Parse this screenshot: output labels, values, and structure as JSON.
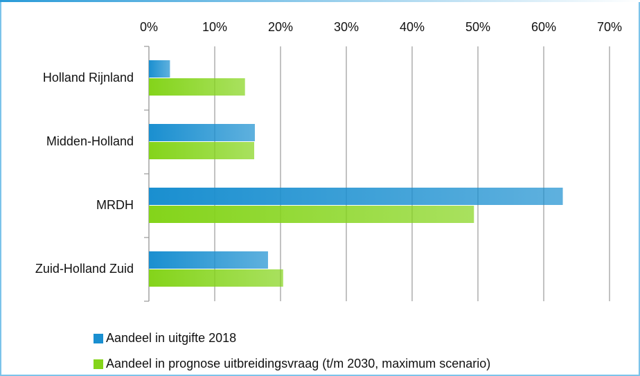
{
  "chart_data": {
    "type": "hbar",
    "categories": [
      "Holland Rijnland",
      "Midden-Holland",
      "MRDH",
      "Zuid-Holland Zuid"
    ],
    "series": [
      {
        "name": "Aandeel in uitgifte 2018",
        "color": "#1a8fd0",
        "values": [
          3.2,
          16.1,
          62.9,
          18.1
        ]
      },
      {
        "name": "Aandeel in prognose uitbreidingsvraag (t/m 2030, maximum scenario)",
        "color": "#84d41a",
        "values": [
          14.6,
          16.0,
          49.4,
          20.4
        ]
      }
    ],
    "xlim": [
      0,
      70
    ],
    "xticks": [
      {
        "value": 0,
        "label": "0%"
      },
      {
        "value": 10,
        "label": "10%"
      },
      {
        "value": 20,
        "label": "20%"
      },
      {
        "value": 30,
        "label": "30%"
      },
      {
        "value": 40,
        "label": "40%"
      },
      {
        "value": 50,
        "label": "50%"
      },
      {
        "value": 60,
        "label": "60%"
      },
      {
        "value": 70,
        "label": "70%"
      }
    ],
    "grid": true
  }
}
